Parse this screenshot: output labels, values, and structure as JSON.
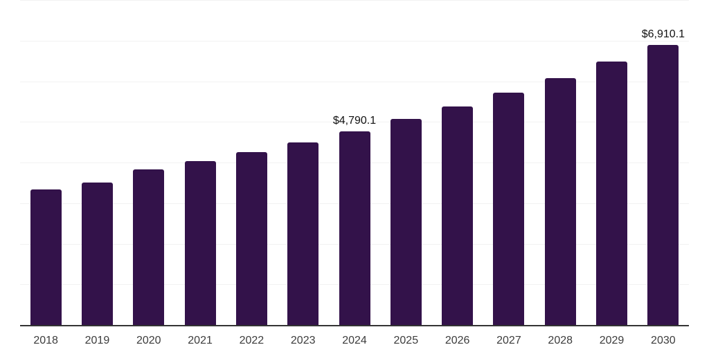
{
  "chart_data": {
    "type": "bar",
    "title": "",
    "xlabel": "",
    "ylabel": "",
    "categories": [
      "2018",
      "2019",
      "2020",
      "2021",
      "2022",
      "2023",
      "2024",
      "2025",
      "2026",
      "2027",
      "2028",
      "2029",
      "2030"
    ],
    "values": [
      3350,
      3520,
      3840,
      4045,
      4265,
      4505,
      4790.1,
      5085,
      5390,
      5730,
      6100,
      6495,
      6910.1
    ],
    "data_labels": {
      "2024": "$4,790.1",
      "2030": "$6,910.1"
    },
    "value_prefix": "$",
    "ylim": [
      0,
      8000
    ],
    "gridline_step": 1000,
    "grid": true,
    "legend": false,
    "bar_color": "#33124A"
  },
  "colors": {
    "bar": "#33124A",
    "gridline": "#F2F2F2",
    "axis_line": "#333333",
    "tick_label": "#3C3C3C",
    "data_label": "#111111",
    "background": "#FFFFFF"
  }
}
